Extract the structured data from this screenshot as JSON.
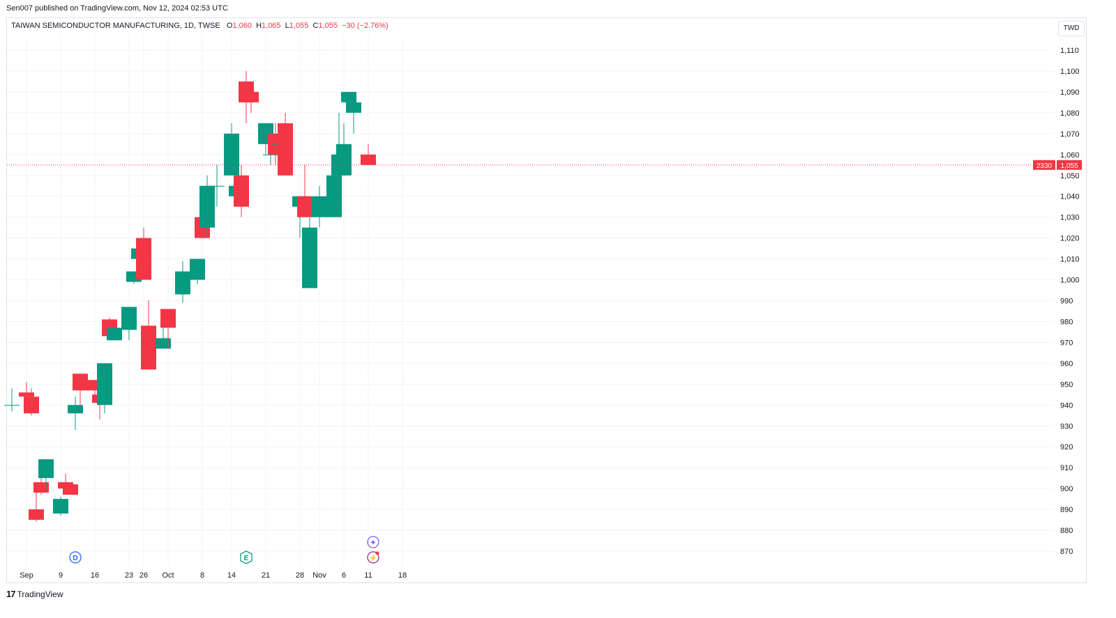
{
  "published": "Sen007 published on TradingView.com, Nov 12, 2024 02:53 UTC",
  "legend": {
    "symbol": "TAIWAN SEMICONDUCTOR MANUFACTURING, 1D, TWSE",
    "o_label": "O",
    "o_value": "1,060",
    "h_label": "H",
    "h_value": "1,065",
    "l_label": "L",
    "l_value": "1,055",
    "c_label": "C",
    "c_value": "1,055",
    "change": "−30 (−2.76%)"
  },
  "currency": "TWD",
  "price_tag": {
    "ticker": "2330",
    "price": "1,055"
  },
  "brand": "TradingView",
  "colors": {
    "up": "#089981",
    "down": "#f23645",
    "grid": "#f0f3fa",
    "text": "#131722"
  },
  "markers": [
    {
      "icon": "dividend-icon",
      "label": "D",
      "date": "2024-09-12",
      "color": "#2962ff"
    },
    {
      "icon": "earnings-icon",
      "label": "E",
      "date": "2024-10-17",
      "color": "#089981"
    },
    {
      "icon": "sparkle-icon",
      "label": "✦",
      "date": "2024-11-12",
      "color": "#7b5cff"
    },
    {
      "icon": "lightning-icon",
      "label": "⚡",
      "date": "2024-11-12",
      "color": "#9c27b0"
    }
  ],
  "chart_data": {
    "type": "candlestick",
    "title": "TAIWAN SEMICONDUCTOR MANUFACTURING, 1D, TWSE",
    "ylim": [
      865,
      1115
    ],
    "y_ticks": [
      870,
      880,
      890,
      900,
      910,
      920,
      930,
      940,
      950,
      960,
      970,
      980,
      990,
      1000,
      1010,
      1020,
      1030,
      1040,
      1050,
      1060,
      1070,
      1080,
      1090,
      1100,
      1110
    ],
    "x_ticks": [
      {
        "date": "2024-09-02",
        "label": "Sep"
      },
      {
        "date": "2024-09-09",
        "label": "9"
      },
      {
        "date": "2024-09-16",
        "label": "16"
      },
      {
        "date": "2024-09-23",
        "label": "23"
      },
      {
        "date": "2024-09-26",
        "label": "26"
      },
      {
        "date": "2024-10-01",
        "label": "Oct"
      },
      {
        "date": "2024-10-08",
        "label": "8"
      },
      {
        "date": "2024-10-14",
        "label": "14"
      },
      {
        "date": "2024-10-21",
        "label": "21"
      },
      {
        "date": "2024-10-28",
        "label": "28"
      },
      {
        "date": "2024-11-01",
        "label": "Nov"
      },
      {
        "date": "2024-11-06",
        "label": "6"
      },
      {
        "date": "2024-11-11",
        "label": "11"
      },
      {
        "date": "2024-11-18",
        "label": "18"
      }
    ],
    "candles": [
      {
        "date": "2024-08-30",
        "o": 940,
        "h": 948,
        "l": 937,
        "c": 940
      },
      {
        "date": "2024-09-02",
        "o": 946,
        "h": 951,
        "l": 939,
        "c": 944
      },
      {
        "date": "2024-09-03",
        "o": 944,
        "h": 948,
        "l": 935,
        "c": 936
      },
      {
        "date": "2024-09-04",
        "o": 890,
        "h": 901,
        "l": 884,
        "c": 885
      },
      {
        "date": "2024-09-05",
        "o": 903,
        "h": 911,
        "l": 897,
        "c": 898
      },
      {
        "date": "2024-09-06",
        "o": 905,
        "h": 914,
        "l": 899,
        "c": 914
      },
      {
        "date": "2024-09-09",
        "o": 888,
        "h": 896,
        "l": 887,
        "c": 895
      },
      {
        "date": "2024-09-10",
        "o": 903,
        "h": 907,
        "l": 897,
        "c": 900
      },
      {
        "date": "2024-09-11",
        "o": 902,
        "h": 902,
        "l": 897,
        "c": 897
      },
      {
        "date": "2024-09-12",
        "o": 936,
        "h": 944,
        "l": 928,
        "c": 940
      },
      {
        "date": "2024-09-13",
        "o": 955,
        "h": 955,
        "l": 940,
        "c": 947
      },
      {
        "date": "2024-09-16",
        "o": 952,
        "h": 952,
        "l": 943,
        "c": 947
      },
      {
        "date": "2024-09-17",
        "o": 945,
        "h": 948,
        "l": 933,
        "c": 941
      },
      {
        "date": "2024-09-18",
        "o": 940,
        "h": 960,
        "l": 936,
        "c": 960
      },
      {
        "date": "2024-09-19",
        "o": 981,
        "h": 982,
        "l": 971,
        "c": 973
      },
      {
        "date": "2024-09-20",
        "o": 971,
        "h": 977,
        "l": 971,
        "c": 977
      },
      {
        "date": "2024-09-23",
        "o": 976,
        "h": 987,
        "l": 971,
        "c": 987
      },
      {
        "date": "2024-09-24",
        "o": 999,
        "h": 1004,
        "l": 998,
        "c": 1004
      },
      {
        "date": "2024-09-25",
        "o": 1010,
        "h": 1015,
        "l": 1005,
        "c": 1015
      },
      {
        "date": "2024-09-26",
        "o": 1020,
        "h": 1025,
        "l": 1000,
        "c": 1000
      },
      {
        "date": "2024-09-27",
        "o": 978,
        "h": 990,
        "l": 957,
        "c": 957
      },
      {
        "date": "2024-09-30",
        "o": 967,
        "h": 977,
        "l": 967,
        "c": 972
      },
      {
        "date": "2024-10-01",
        "o": 986,
        "h": 986,
        "l": 967,
        "c": 977
      },
      {
        "date": "2024-10-04",
        "o": 993,
        "h": 1009,
        "l": 989,
        "c": 1004
      },
      {
        "date": "2024-10-07",
        "o": 1000,
        "h": 1010,
        "l": 998,
        "c": 1010
      },
      {
        "date": "2024-10-08",
        "o": 1030,
        "h": 1035,
        "l": 1020,
        "c": 1020
      },
      {
        "date": "2024-10-09",
        "o": 1025,
        "h": 1050,
        "l": 1020,
        "c": 1045
      },
      {
        "date": "2024-10-11",
        "o": 1045,
        "h": 1055,
        "l": 1035,
        "c": 1045
      },
      {
        "date": "2024-10-14",
        "o": 1050,
        "h": 1075,
        "l": 1050,
        "c": 1070
      },
      {
        "date": "2024-10-15",
        "o": 1040,
        "h": 1070,
        "l": 1035,
        "c": 1045
      },
      {
        "date": "2024-10-16",
        "o": 1050,
        "h": 1055,
        "l": 1030,
        "c": 1035
      },
      {
        "date": "2024-10-17",
        "o": 1095,
        "h": 1100,
        "l": 1075,
        "c": 1085
      },
      {
        "date": "2024-10-18",
        "o": 1090,
        "h": 1095,
        "l": 1080,
        "c": 1085
      },
      {
        "date": "2024-10-21",
        "o": 1065,
        "h": 1075,
        "l": 1060,
        "c": 1075
      },
      {
        "date": "2024-10-22",
        "o": 1060,
        "h": 1070,
        "l": 1055,
        "c": 1060
      },
      {
        "date": "2024-10-23",
        "o": 1070,
        "h": 1075,
        "l": 1055,
        "c": 1060
      },
      {
        "date": "2024-10-24",
        "o": 1065,
        "h": 1070,
        "l": 1060,
        "c": 1065
      },
      {
        "date": "2024-10-25",
        "o": 1075,
        "h": 1080,
        "l": 1050,
        "c": 1050
      },
      {
        "date": "2024-10-28",
        "o": 1035,
        "h": 1040,
        "l": 1020,
        "c": 1040
      },
      {
        "date": "2024-10-29",
        "o": 1040,
        "h": 1055,
        "l": 1030,
        "c": 1030
      },
      {
        "date": "2024-10-30",
        "o": 996,
        "h": 1030,
        "l": 996,
        "c": 1025
      },
      {
        "date": "2024-11-01",
        "o": 1030,
        "h": 1045,
        "l": 1025,
        "c": 1040
      },
      {
        "date": "2024-11-04",
        "o": 1030,
        "h": 1055,
        "l": 1030,
        "c": 1050
      },
      {
        "date": "2024-11-05",
        "o": 1050,
        "h": 1080,
        "l": 1040,
        "c": 1060
      },
      {
        "date": "2024-11-06",
        "o": 1050,
        "h": 1075,
        "l": 1050,
        "c": 1065
      },
      {
        "date": "2024-11-07",
        "o": 1085,
        "h": 1090,
        "l": 1080,
        "c": 1090
      },
      {
        "date": "2024-11-08",
        "o": 1080,
        "h": 1090,
        "l": 1070,
        "c": 1085
      },
      {
        "date": "2024-11-11",
        "o": 1060,
        "h": 1065,
        "l": 1055,
        "c": 1055
      }
    ],
    "last_price": 1055
  }
}
